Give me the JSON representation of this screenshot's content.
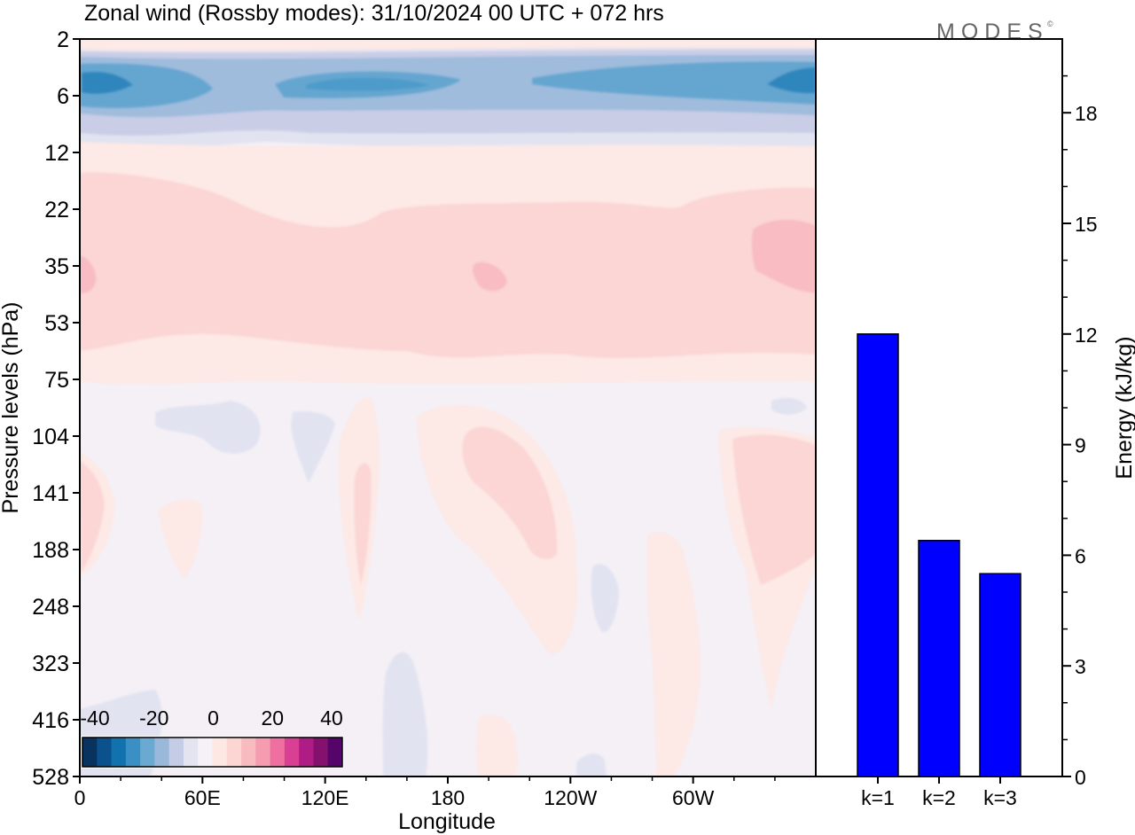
{
  "header": {
    "title": "Zonal wind (Rossby modes):  31/10/2024  00 UTC  + 072 hrs",
    "logo": "MODES"
  },
  "chart_data": [
    {
      "type": "heatmap",
      "xlabel": "Longitude",
      "ylabel": "Pressure levels (hPa)",
      "x_ticks": [
        "0",
        "60E",
        "120E",
        "180",
        "120W",
        "60W"
      ],
      "y_ticks": [
        "2",
        "6",
        "12",
        "22",
        "35",
        "53",
        "75",
        "104",
        "141",
        "188",
        "248",
        "323",
        "416",
        "528"
      ],
      "y_scale": "log-pressure (top 2 hPa, bottom 528 hPa)",
      "colorbar": {
        "tick_labels": [
          "-40",
          "-20",
          "0",
          "20",
          "40"
        ],
        "range": [
          -40,
          40
        ],
        "colors": [
          "#08335e",
          "#0a518e",
          "#1272ad",
          "#3a8fc4",
          "#6aaad2",
          "#9ab9da",
          "#c5cde6",
          "#e4e4f1",
          "#f5f1f7",
          "#fde8e4",
          "#fcd6d3",
          "#f8bcc0",
          "#f59cb0",
          "#ee6fa0",
          "#d93f93",
          "#b01c86",
          "#85116f",
          "#55056a"
        ]
      },
      "field_description_levels": {
        "strong_negative": "#2e86bd",
        "negative": "#65a6d0",
        "weak_negative": "#9fbcdd",
        "slight_negative": "#c9cde6",
        "faint_negative": "#e2e3f0",
        "near_zero": "#f4f0f6",
        "faint_positive": "#fde9e6",
        "weak_positive": "#fbd6d4",
        "positive": "#f8bcc2"
      }
    },
    {
      "type": "bar",
      "categories": [
        "k=1",
        "k=2",
        "k=3"
      ],
      "values": [
        12.0,
        6.4,
        5.5
      ],
      "ylabel": "Energy (kJ/kg)",
      "ylim": [
        0,
        20
      ],
      "y_ticks": [
        "0",
        "3",
        "6",
        "9",
        "12",
        "15",
        "18"
      ],
      "bar_color": "#0000ff"
    }
  ]
}
